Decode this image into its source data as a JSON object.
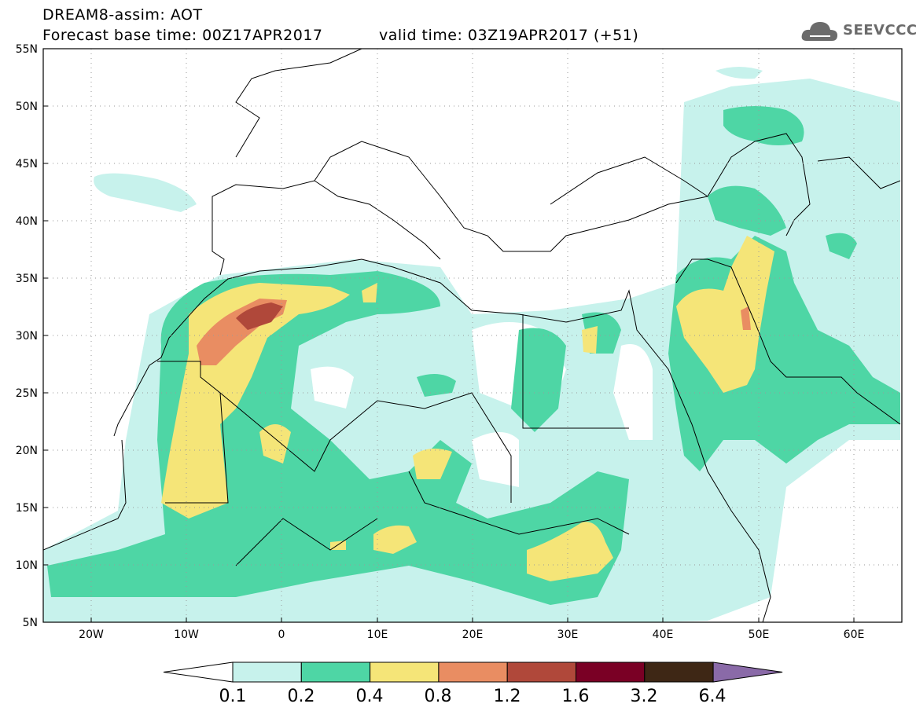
{
  "header": {
    "title_line1": "DREAM8-assim: AOT",
    "title_line2": "Forecast base time: 00Z17APR2017",
    "valid_time": "valid time: 03Z19APR2017 (+51)",
    "logo_text": "SEEVCCC",
    "logo_icon": "cloud-icon"
  },
  "map": {
    "variable": "AOT",
    "lon_range": [
      -25,
      65
    ],
    "lat_range": [
      5,
      55
    ],
    "lat_labels": [
      "55N",
      "50N",
      "45N",
      "40N",
      "35N",
      "30N",
      "25N",
      "20N",
      "15N",
      "10N",
      "5N"
    ],
    "lon_labels": [
      "20W",
      "10W",
      "0",
      "10E",
      "20E",
      "30E",
      "40E",
      "50E",
      "60E"
    ],
    "grid": "dotted"
  },
  "colorbar": {
    "labels": [
      "0.1",
      "0.2",
      "0.4",
      "0.8",
      "1.2",
      "1.6",
      "3.2",
      "6.4"
    ],
    "colors": [
      "#ffffff",
      "#c7f2ec",
      "#4ed6a5",
      "#f5e578",
      "#e98d62",
      "#b0483a",
      "#7a0025",
      "#3e2715",
      "#8a6aa8"
    ]
  }
}
